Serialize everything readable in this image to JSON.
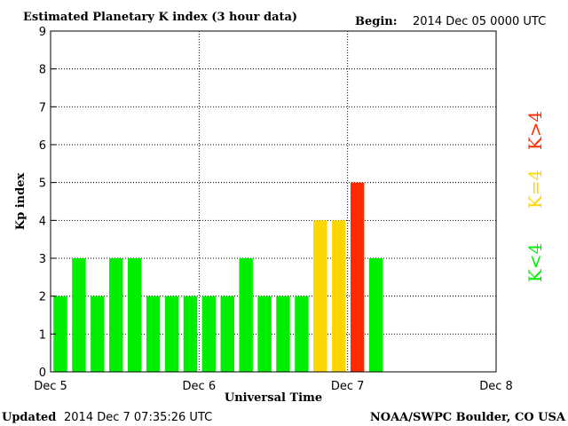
{
  "chart_data": {
    "type": "bar",
    "title": "Estimated Planetary K index (3 hour data)",
    "begin_label": "Begin:",
    "begin_value": "2014 Dec 05 0000 UTC",
    "xlabel": "Universal Time",
    "ylabel": "Kp index",
    "ylim": [
      0,
      9
    ],
    "yticks": [
      "0",
      "1",
      "2",
      "3",
      "4",
      "5",
      "6",
      "7",
      "8",
      "9"
    ],
    "xticks": [
      "Dec 5",
      "Dec 6",
      "Dec 7",
      "Dec 8"
    ],
    "x_range_hours": [
      0,
      72
    ],
    "interval_hours": 3,
    "values": [
      2,
      3,
      2,
      3,
      3,
      2,
      2,
      2,
      2,
      2,
      3,
      2,
      2,
      2,
      4,
      4,
      5,
      3
    ],
    "grid": true,
    "colors": {
      "low": "#00ee00",
      "equal": "#ffd700",
      "high": "#ff2a00"
    },
    "legend": [
      {
        "label": "K<4",
        "color": "#00ee00"
      },
      {
        "label": "K=4",
        "color": "#ffd700"
      },
      {
        "label": "K>4",
        "color": "#ff2a00"
      }
    ],
    "legend_placement": "right"
  },
  "footer": {
    "updated_label": "Updated",
    "updated_value": "2014 Dec  7 07:35:26 UTC",
    "credit": "NOAA/SWPC Boulder, CO USA"
  }
}
